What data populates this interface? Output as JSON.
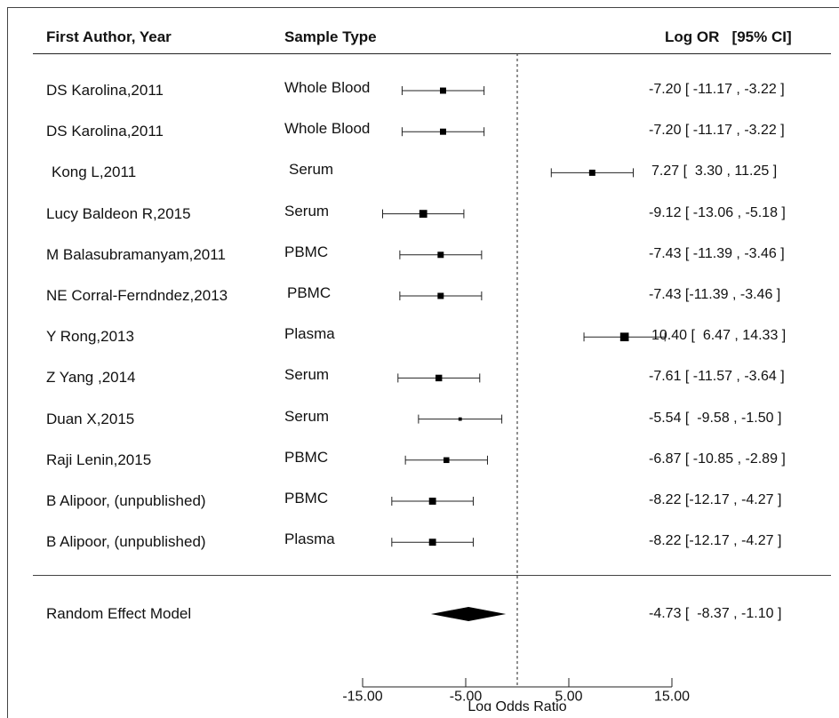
{
  "headers": {
    "study": "First Author, Year",
    "sample": "Sample Type",
    "estimate": "Log OR   [95% CI]"
  },
  "chart_data": {
    "type": "forest",
    "xlabel": "Log Odds Ratio",
    "xticks": [
      "-15.00",
      "-5.00",
      "5.00",
      "15.00"
    ],
    "xtick_values": [
      -15,
      -5,
      5,
      15
    ],
    "xlim": [
      -15,
      15
    ],
    "reference_line": 0,
    "studies": [
      {
        "study": "DS Karolina,2011",
        "sample": "Whole Blood",
        "est": -7.2,
        "lo": -11.17,
        "hi": -3.22,
        "ci_text": "-7.20 [ -11.17 , -3.22 ]",
        "weight": 0.55
      },
      {
        "study": "DS Karolina,2011",
        "sample": "Whole Blood",
        "est": -7.2,
        "lo": -11.17,
        "hi": -3.22,
        "ci_text": "-7.20 [ -11.17 , -3.22 ]",
        "weight": 0.55
      },
      {
        "study": "Kong L,2011",
        "sample": "Serum",
        "est": 7.27,
        "lo": 3.3,
        "hi": 11.25,
        "ci_text": "7.27 [  3.30 , 11.25 ]",
        "weight": 0.55
      },
      {
        "study": "Lucy Baldeon R,2015",
        "sample": "Serum",
        "est": -9.12,
        "lo": -13.06,
        "hi": -5.18,
        "ci_text": "-9.12 [ -13.06 , -5.18 ]",
        "weight": 0.75
      },
      {
        "study": "M Balasubramanyam,2011",
        "sample": "PBMC",
        "est": -7.43,
        "lo": -11.39,
        "hi": -3.46,
        "ci_text": "-7.43 [ -11.39 , -3.46 ]",
        "weight": 0.55
      },
      {
        "study": "NE Corral-Ferndndez,2013",
        "sample": "PBMC",
        "est": -7.43,
        "lo": -11.39,
        "hi": -3.46,
        "ci_text": "-7.43 [-11.39 , -3.46 ]",
        "weight": 0.55
      },
      {
        "study": "Y Rong,2013",
        "sample": "Plasma",
        "est": 10.4,
        "lo": 6.47,
        "hi": 14.33,
        "ci_text": "10.40 [  6.47 , 14.33 ]",
        "weight": 0.85
      },
      {
        "study": "Z Yang ,2014",
        "sample": "Serum",
        "est": -7.61,
        "lo": -11.57,
        "hi": -3.64,
        "ci_text": "-7.61 [ -11.57 , -3.64 ]",
        "weight": 0.6
      },
      {
        "study": "Duan X,2015",
        "sample": "Serum",
        "est": -5.54,
        "lo": -9.58,
        "hi": -1.5,
        "ci_text": "-5.54 [  -9.58 , -1.50 ]",
        "weight": 0.2
      },
      {
        "study": "Raji Lenin,2015",
        "sample": "PBMC",
        "est": -6.87,
        "lo": -10.85,
        "hi": -2.89,
        "ci_text": "-6.87 [ -10.85 , -2.89 ]",
        "weight": 0.5
      },
      {
        "study": "B Alipoor, (unpublished)",
        "sample": "PBMC",
        "est": -8.22,
        "lo": -12.17,
        "hi": -4.27,
        "ci_text": "-8.22 [-12.17 , -4.27 ]",
        "weight": 0.65
      },
      {
        "study": "B Alipoor, (unpublished)",
        "sample": "Plasma",
        "est": -8.22,
        "lo": -12.17,
        "hi": -4.27,
        "ci_text": "-8.22 [-12.17 , -4.27 ]",
        "weight": 0.65
      }
    ],
    "summary": {
      "label": "Random Effect Model",
      "est": -4.73,
      "lo": -8.37,
      "hi": -1.1,
      "ci_text": "-4.73 [  -8.37 , -1.10 ]"
    }
  }
}
